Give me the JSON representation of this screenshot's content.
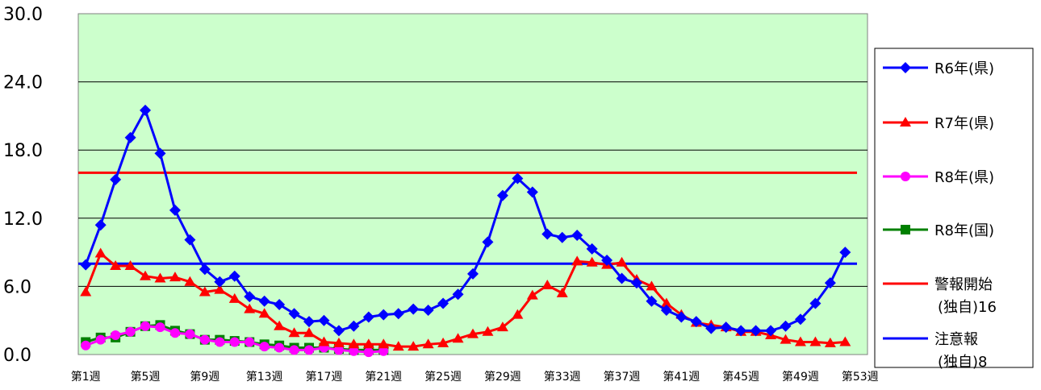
{
  "chart_data": {
    "type": "line",
    "title": "",
    "xlabel": "",
    "ylabel": "",
    "ylim": [
      0,
      30
    ],
    "yticks": [
      "0.0",
      "6.0",
      "12.0",
      "18.0",
      "24.0",
      "30.0"
    ],
    "x_tick_labels": [
      "第1週",
      "第5週",
      "第9週",
      "第13週",
      "第17週",
      "第21週",
      "第25週",
      "第29週",
      "第33週",
      "第37週",
      "第41週",
      "第45週",
      "第49週",
      "第53週"
    ],
    "grid": true,
    "legend_position": "right",
    "plot_background": "#ccffcc",
    "series": [
      {
        "name": "R6年(県)",
        "color": "#0000ff",
        "marker": "diamond",
        "values": [
          7.9,
          11.4,
          15.4,
          19.1,
          21.5,
          17.7,
          12.7,
          10.1,
          7.5,
          6.4,
          6.9,
          5.1,
          4.7,
          4.4,
          3.6,
          2.9,
          3.0,
          2.1,
          2.5,
          3.3,
          3.5,
          3.6,
          4.0,
          3.9,
          4.5,
          5.3,
          7.1,
          9.9,
          14.0,
          15.5,
          14.3,
          10.6,
          10.3,
          10.5,
          9.3,
          8.3,
          6.7,
          6.3,
          4.7,
          3.9,
          3.3,
          2.9,
          2.3,
          2.4,
          2.1,
          2.1,
          2.1,
          2.5,
          3.1,
          4.5,
          6.3,
          9.0
        ]
      },
      {
        "name": "R7年(県)",
        "color": "#ff0000",
        "marker": "triangle",
        "values": [
          5.5,
          8.9,
          7.8,
          7.8,
          6.9,
          6.7,
          6.8,
          6.4,
          5.5,
          5.7,
          4.9,
          4.0,
          3.6,
          2.5,
          1.9,
          1.9,
          1.1,
          1.0,
          0.9,
          0.9,
          0.9,
          0.7,
          0.7,
          0.9,
          1.0,
          1.4,
          1.8,
          2.0,
          2.4,
          3.5,
          5.2,
          6.1,
          5.4,
          8.2,
          8.1,
          7.9,
          8.1,
          6.6,
          6.0,
          4.5,
          3.5,
          2.8,
          2.6,
          2.4,
          2.0,
          2.0,
          1.7,
          1.3,
          1.1,
          1.1,
          1.0,
          1.1
        ]
      },
      {
        "name": "R8年(県)",
        "color": "#ff00ff",
        "marker": "circle",
        "values": [
          0.8,
          1.3,
          1.7,
          2.0,
          2.5,
          2.4,
          1.9,
          1.8,
          1.3,
          1.1,
          1.1,
          1.1,
          0.7,
          0.6,
          0.4,
          0.4,
          0.6,
          0.4,
          0.3,
          0.2,
          0.3
        ]
      },
      {
        "name": "R8年(国)",
        "color": "#008000",
        "marker": "square",
        "values": [
          1.1,
          1.5,
          1.5,
          2.0,
          2.5,
          2.6,
          2.1,
          1.8,
          1.3,
          1.3,
          1.2,
          1.1,
          0.9,
          0.8,
          0.6,
          0.6,
          0.6,
          0.5,
          0.4,
          0.4,
          0.4
        ]
      },
      {
        "name": "警報開始",
        "name_sub": "(独自)16",
        "color": "#ff0000",
        "marker": "none",
        "constant": 16
      },
      {
        "name": "注意報",
        "name_sub": "(独自)8",
        "color": "#0000ff",
        "marker": "none",
        "constant": 8
      }
    ]
  }
}
